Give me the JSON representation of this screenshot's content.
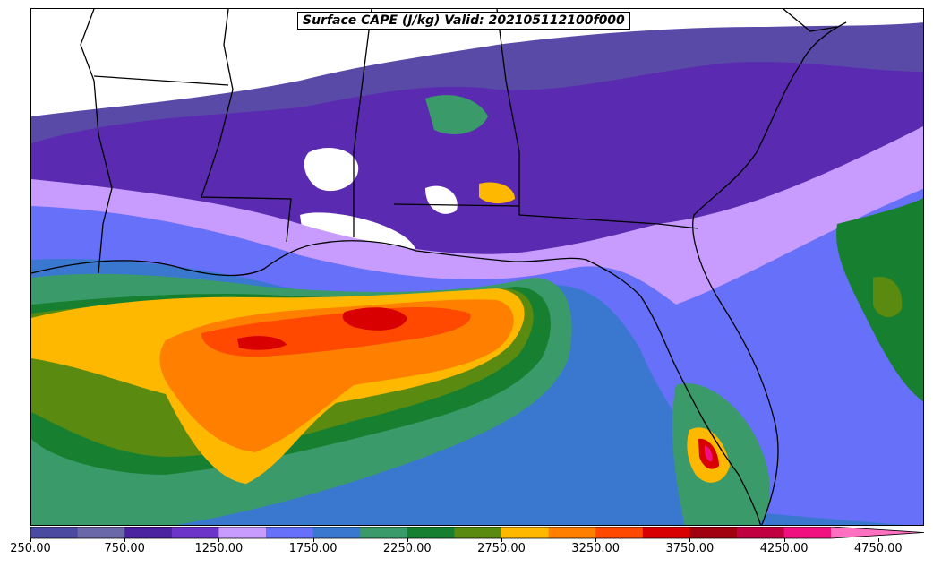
{
  "title": "Surface CAPE (J/kg) Valid: 2021051121​00f000",
  "title_text": "Surface CAPE (J/kg) Valid: 202105112100f000",
  "colorbar": {
    "colors": [
      "#4a4aa0",
      "#6a68a8",
      "#4b22a0",
      "#6c34c8",
      "#c89cff",
      "#6670f8",
      "#3a78d0",
      "#3a9a6a",
      "#178030",
      "#5a8a10",
      "#ffb800",
      "#ff8000",
      "#ff4800",
      "#d80000",
      "#a00010",
      "#c00040",
      "#f01080",
      "#ff70c0"
    ],
    "ticks": [
      "250.00",
      "750.00",
      "1250.00",
      "1750.00",
      "2250.00",
      "2750.00",
      "3250.00",
      "3750.00",
      "4250.00",
      "4750.00"
    ]
  }
}
